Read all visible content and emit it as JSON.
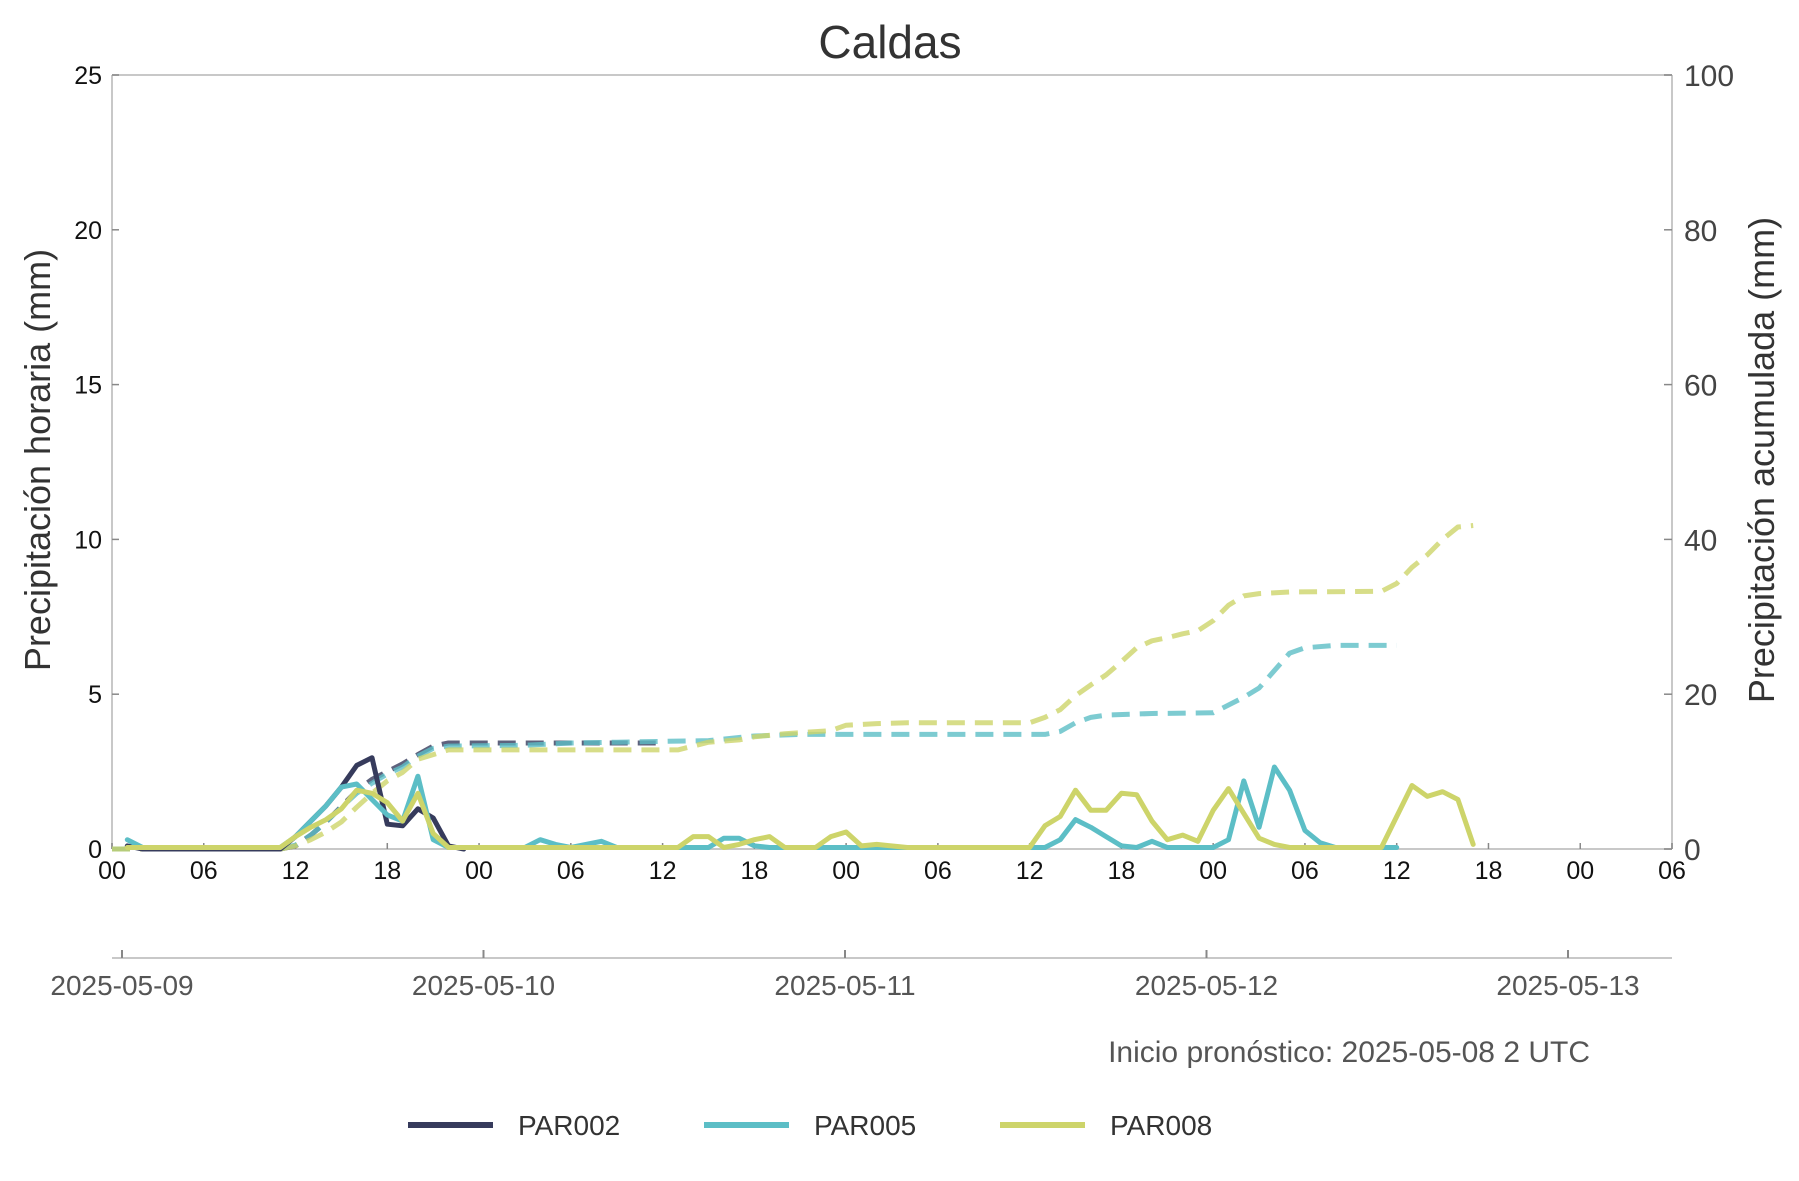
{
  "chart_data": {
    "type": "line",
    "title": "Caldas",
    "ylabel": "Precipitación horaria (mm)",
    "ylabel_right": "Precipitación acumulada (mm)",
    "ylim": [
      0,
      25
    ],
    "ylim_right": [
      0,
      100
    ],
    "yticks": [
      "0",
      "5",
      "10",
      "15",
      "20",
      "25"
    ],
    "yticks_right": [
      "0",
      "20",
      "40",
      "60",
      "80",
      "100"
    ],
    "xlim": [
      "2025-05-09 00:00",
      "2025-05-13 06:00"
    ],
    "hour_ticks": [
      "00",
      "06",
      "12",
      "18",
      "00",
      "06",
      "12",
      "18",
      "00",
      "06",
      "12",
      "18",
      "00",
      "06",
      "12",
      "18",
      "00",
      "06"
    ],
    "date_ticks": [
      "2025-05-09",
      "2025-05-10",
      "2025-05-11",
      "2025-05-12",
      "2025-05-13"
    ],
    "footnote": "Inicio pronóstico: 2025-05-08 2 UTC",
    "grid": false,
    "legend_position": "bottom",
    "series": [
      {
        "name": "PAR002",
        "color": "#363b5c",
        "hourly": [
          [
            "2025-05-09 01:00",
            0.1
          ],
          [
            "2025-05-09 02:00",
            0
          ],
          [
            "2025-05-09 11:00",
            0
          ],
          [
            "2025-05-09 12:00",
            0.4
          ],
          [
            "2025-05-09 13:00",
            0.9
          ],
          [
            "2025-05-09 14:00",
            1.4
          ],
          [
            "2025-05-09 15:00",
            2.0
          ],
          [
            "2025-05-09 16:00",
            2.7
          ],
          [
            "2025-05-09 17:00",
            2.95
          ],
          [
            "2025-05-09 18:00",
            0.8
          ],
          [
            "2025-05-09 19:00",
            0.75
          ],
          [
            "2025-05-09 20:00",
            1.3
          ],
          [
            "2025-05-09 21:00",
            1.0
          ],
          [
            "2025-05-09 22:00",
            0.1
          ],
          [
            "2025-05-09 23:00",
            0
          ]
        ],
        "accumulated": [
          [
            "2025-05-09 00:00",
            0
          ],
          [
            "2025-05-09 11:00",
            0
          ],
          [
            "2025-05-09 12:00",
            0.4
          ],
          [
            "2025-05-09 13:00",
            1.8
          ],
          [
            "2025-05-09 14:00",
            3.5
          ],
          [
            "2025-05-09 15:00",
            5.5
          ],
          [
            "2025-05-09 16:00",
            7.5
          ],
          [
            "2025-05-09 17:00",
            9.0
          ],
          [
            "2025-05-09 18:00",
            10.0
          ],
          [
            "2025-05-09 19:00",
            11.0
          ],
          [
            "2025-05-09 20:00",
            12.2
          ],
          [
            "2025-05-09 21:00",
            13.3
          ],
          [
            "2025-05-09 22:00",
            13.7
          ],
          [
            "2025-05-10 12:00",
            13.7
          ]
        ]
      },
      {
        "name": "PAR005",
        "color": "#5cbec6",
        "hourly": [
          [
            "2025-05-09 01:00",
            0.3
          ],
          [
            "2025-05-09 02:00",
            0.05
          ],
          [
            "2025-05-09 11:00",
            0.05
          ],
          [
            "2025-05-09 12:00",
            0.4
          ],
          [
            "2025-05-09 13:00",
            0.9
          ],
          [
            "2025-05-09 14:00",
            1.4
          ],
          [
            "2025-05-09 15:00",
            2.0
          ],
          [
            "2025-05-09 16:00",
            2.1
          ],
          [
            "2025-05-09 17:00",
            1.6
          ],
          [
            "2025-05-09 18:00",
            1.1
          ],
          [
            "2025-05-09 19:00",
            0.9
          ],
          [
            "2025-05-09 20:00",
            2.35
          ],
          [
            "2025-05-09 21:00",
            0.3
          ],
          [
            "2025-05-09 22:00",
            0.05
          ],
          [
            "2025-05-10 03:00",
            0.05
          ],
          [
            "2025-05-10 04:00",
            0.3
          ],
          [
            "2025-05-10 05:00",
            0.15
          ],
          [
            "2025-05-10 06:00",
            0.05
          ],
          [
            "2025-05-10 08:00",
            0.25
          ],
          [
            "2025-05-10 09:00",
            0.05
          ],
          [
            "2025-05-10 15:00",
            0.05
          ],
          [
            "2025-05-10 16:00",
            0.35
          ],
          [
            "2025-05-10 17:00",
            0.35
          ],
          [
            "2025-05-10 18:00",
            0.1
          ],
          [
            "2025-05-10 19:00",
            0.05
          ],
          [
            "2025-05-11 13:00",
            0.05
          ],
          [
            "2025-05-11 14:00",
            0.3
          ],
          [
            "2025-05-11 15:00",
            0.95
          ],
          [
            "2025-05-11 16:00",
            0.7
          ],
          [
            "2025-05-11 17:00",
            0.4
          ],
          [
            "2025-05-11 18:00",
            0.1
          ],
          [
            "2025-05-11 19:00",
            0.05
          ],
          [
            "2025-05-11 20:00",
            0.25
          ],
          [
            "2025-05-11 21:00",
            0.05
          ],
          [
            "2025-05-12 00:00",
            0.05
          ],
          [
            "2025-05-12 01:00",
            0.3
          ],
          [
            "2025-05-12 02:00",
            2.2
          ],
          [
            "2025-05-12 03:00",
            0.7
          ],
          [
            "2025-05-12 04:00",
            2.65
          ],
          [
            "2025-05-12 05:00",
            1.9
          ],
          [
            "2025-05-12 06:00",
            0.6
          ],
          [
            "2025-05-12 07:00",
            0.2
          ],
          [
            "2025-05-12 08:00",
            0.05
          ],
          [
            "2025-05-12 12:00",
            0.05
          ]
        ],
        "accumulated": [
          [
            "2025-05-09 00:00",
            0
          ],
          [
            "2025-05-09 11:00",
            0
          ],
          [
            "2025-05-09 12:00",
            0.5
          ],
          [
            "2025-05-09 13:00",
            1.8
          ],
          [
            "2025-05-09 14:00",
            3.5
          ],
          [
            "2025-05-09 15:00",
            5.4
          ],
          [
            "2025-05-09 16:00",
            7.2
          ],
          [
            "2025-05-09 17:00",
            8.5
          ],
          [
            "2025-05-09 18:00",
            9.7
          ],
          [
            "2025-05-09 19:00",
            10.6
          ],
          [
            "2025-05-09 20:00",
            12.0
          ],
          [
            "2025-05-09 21:00",
            13.0
          ],
          [
            "2025-05-09 22:00",
            13.3
          ],
          [
            "2025-05-10 03:00",
            13.4
          ],
          [
            "2025-05-10 06:00",
            13.7
          ],
          [
            "2025-05-10 09:00",
            13.8
          ],
          [
            "2025-05-10 15:00",
            14.0
          ],
          [
            "2025-05-10 18:00",
            14.6
          ],
          [
            "2025-05-10 21:00",
            14.8
          ],
          [
            "2025-05-11 13:00",
            14.8
          ],
          [
            "2025-05-11 14:00",
            15.2
          ],
          [
            "2025-05-11 15:00",
            16.3
          ],
          [
            "2025-05-11 16:00",
            17.0
          ],
          [
            "2025-05-11 17:00",
            17.3
          ],
          [
            "2025-05-11 20:00",
            17.5
          ],
          [
            "2025-05-12 00:00",
            17.6
          ],
          [
            "2025-05-12 02:00",
            19.6
          ],
          [
            "2025-05-12 03:00",
            20.8
          ],
          [
            "2025-05-12 05:00",
            25.3
          ],
          [
            "2025-05-12 06:00",
            26.0
          ],
          [
            "2025-05-12 08:00",
            26.3
          ],
          [
            "2025-05-12 12:00",
            26.3
          ]
        ]
      },
      {
        "name": "PAR008",
        "color": "#cdd46a",
        "hourly": [
          [
            "2025-05-09 01:00",
            0.05
          ],
          [
            "2025-05-09 11:00",
            0.05
          ],
          [
            "2025-05-09 12:00",
            0.4
          ],
          [
            "2025-05-09 13:00",
            0.7
          ],
          [
            "2025-05-09 14:00",
            0.95
          ],
          [
            "2025-05-09 15:00",
            1.3
          ],
          [
            "2025-05-09 16:00",
            1.9
          ],
          [
            "2025-05-09 17:00",
            1.8
          ],
          [
            "2025-05-09 18:00",
            1.5
          ],
          [
            "2025-05-09 19:00",
            0.9
          ],
          [
            "2025-05-09 20:00",
            1.8
          ],
          [
            "2025-05-09 21:00",
            0.5
          ],
          [
            "2025-05-09 22:00",
            0.05
          ],
          [
            "2025-05-10 13:00",
            0.05
          ],
          [
            "2025-05-10 14:00",
            0.4
          ],
          [
            "2025-05-10 15:00",
            0.4
          ],
          [
            "2025-05-10 16:00",
            0.05
          ],
          [
            "2025-05-10 17:00",
            0.15
          ],
          [
            "2025-05-10 18:00",
            0.3
          ],
          [
            "2025-05-10 19:00",
            0.4
          ],
          [
            "2025-05-10 20:00",
            0.05
          ],
          [
            "2025-05-10 22:00",
            0.05
          ],
          [
            "2025-05-10 23:00",
            0.4
          ],
          [
            "2025-05-11 00:00",
            0.55
          ],
          [
            "2025-05-11 01:00",
            0.1
          ],
          [
            "2025-05-11 02:00",
            0.15
          ],
          [
            "2025-05-11 04:00",
            0.05
          ],
          [
            "2025-05-11 12:00",
            0.05
          ],
          [
            "2025-05-11 13:00",
            0.75
          ],
          [
            "2025-05-11 14:00",
            1.05
          ],
          [
            "2025-05-11 15:00",
            1.9
          ],
          [
            "2025-05-11 16:00",
            1.25
          ],
          [
            "2025-05-11 17:00",
            1.25
          ],
          [
            "2025-05-11 18:00",
            1.8
          ],
          [
            "2025-05-11 19:00",
            1.75
          ],
          [
            "2025-05-11 20:00",
            0.9
          ],
          [
            "2025-05-11 21:00",
            0.3
          ],
          [
            "2025-05-11 22:00",
            0.45
          ],
          [
            "2025-05-11 23:00",
            0.25
          ],
          [
            "2025-05-12 00:00",
            1.25
          ],
          [
            "2025-05-12 01:00",
            1.95
          ],
          [
            "2025-05-12 02:00",
            1.15
          ],
          [
            "2025-05-12 03:00",
            0.35
          ],
          [
            "2025-05-12 04:00",
            0.15
          ],
          [
            "2025-05-12 05:00",
            0.05
          ],
          [
            "2025-05-12 11:00",
            0.05
          ],
          [
            "2025-05-12 12:00",
            1.05
          ],
          [
            "2025-05-12 13:00",
            2.05
          ],
          [
            "2025-05-12 14:00",
            1.7
          ],
          [
            "2025-05-12 15:00",
            1.85
          ],
          [
            "2025-05-12 16:00",
            1.6
          ],
          [
            "2025-05-12 17:00",
            0.15
          ]
        ],
        "accumulated": [
          [
            "2025-05-09 00:00",
            0
          ],
          [
            "2025-05-09 11:00",
            0
          ],
          [
            "2025-05-09 12:00",
            0.4
          ],
          [
            "2025-05-09 13:00",
            1.2
          ],
          [
            "2025-05-09 14:00",
            2.2
          ],
          [
            "2025-05-09 15:00",
            3.5
          ],
          [
            "2025-05-09 16:00",
            5.4
          ],
          [
            "2025-05-09 17:00",
            7.2
          ],
          [
            "2025-05-09 18:00",
            8.8
          ],
          [
            "2025-05-09 19:00",
            9.9
          ],
          [
            "2025-05-09 20:00",
            11.6
          ],
          [
            "2025-05-09 21:00",
            12.2
          ],
          [
            "2025-05-09 22:00",
            12.8
          ],
          [
            "2025-05-10 13:00",
            12.8
          ],
          [
            "2025-05-10 14:00",
            13.3
          ],
          [
            "2025-05-10 15:00",
            13.8
          ],
          [
            "2025-05-10 17:00",
            14.1
          ],
          [
            "2025-05-10 18:00",
            14.5
          ],
          [
            "2025-05-10 20:00",
            14.9
          ],
          [
            "2025-05-10 23:00",
            15.3
          ],
          [
            "2025-05-11 00:00",
            16.0
          ],
          [
            "2025-05-11 02:00",
            16.2
          ],
          [
            "2025-05-11 04:00",
            16.3
          ],
          [
            "2025-05-11 12:00",
            16.3
          ],
          [
            "2025-05-11 13:00",
            17.0
          ],
          [
            "2025-05-11 14:00",
            18.0
          ],
          [
            "2025-05-11 15:00",
            19.8
          ],
          [
            "2025-05-11 16:00",
            21.2
          ],
          [
            "2025-05-11 17:00",
            22.5
          ],
          [
            "2025-05-11 18:00",
            24.2
          ],
          [
            "2025-05-11 19:00",
            26.0
          ],
          [
            "2025-05-11 20:00",
            26.9
          ],
          [
            "2025-05-11 21:00",
            27.3
          ],
          [
            "2025-05-11 22:00",
            27.8
          ],
          [
            "2025-05-11 23:00",
            28.2
          ],
          [
            "2025-05-12 00:00",
            29.5
          ],
          [
            "2025-05-12 01:00",
            31.5
          ],
          [
            "2025-05-12 02:00",
            32.7
          ],
          [
            "2025-05-12 03:00",
            33.0
          ],
          [
            "2025-05-12 05:00",
            33.2
          ],
          [
            "2025-05-12 11:00",
            33.3
          ],
          [
            "2025-05-12 12:00",
            34.3
          ],
          [
            "2025-05-12 13:00",
            36.4
          ],
          [
            "2025-05-12 14:00",
            38.0
          ],
          [
            "2025-05-12 15:00",
            40.0
          ],
          [
            "2025-05-12 16:00",
            41.6
          ],
          [
            "2025-05-12 17:00",
            41.8
          ]
        ]
      }
    ]
  }
}
